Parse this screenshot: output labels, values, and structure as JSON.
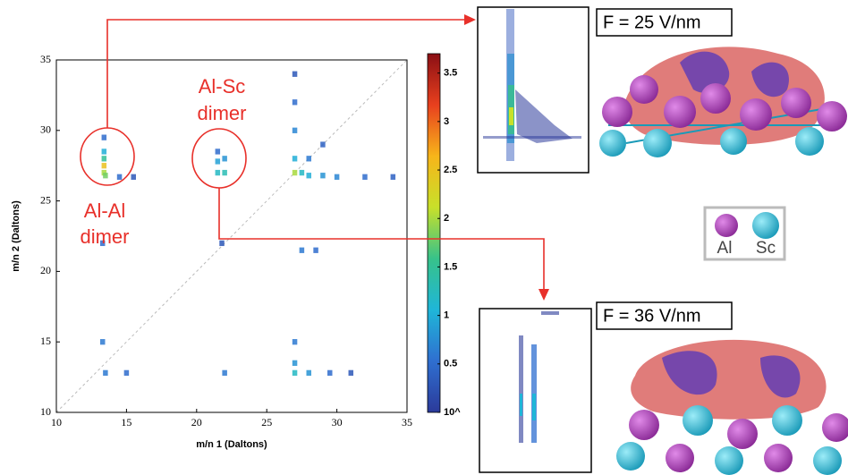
{
  "chart_data": {
    "type": "heatmap",
    "x_label": "m/n 1 (Daltons)",
    "y_label": "m/n 2 (Daltons)",
    "xlim": [
      10,
      35
    ],
    "ylim": [
      10,
      35
    ],
    "xticks": [
      10,
      15,
      20,
      25,
      30,
      35
    ],
    "yticks": [
      10,
      15,
      20,
      25,
      30,
      35
    ],
    "clim": [
      0,
      3.7
    ],
    "cticks": [
      {
        "value": 0,
        "label": "10^"
      },
      0.5,
      1,
      1.5,
      2,
      2.5,
      3,
      3.5
    ],
    "colormap": [
      "#2b3a9a",
      "#2f6fd0",
      "#1fb6d8",
      "#37c28a",
      "#c8e02a",
      "#f7b51a",
      "#e8401e",
      "#8a0f14"
    ],
    "diagonal": true,
    "x": [
      13.4,
      13.4,
      13.4,
      13.4,
      13.4,
      13.5,
      14.5,
      15.5,
      21.5,
      21.5,
      21.5,
      22.0,
      22.0,
      27.0,
      27.5,
      28.0,
      29.0,
      30.0,
      32.0,
      34.0,
      27.0,
      27.0,
      27.0,
      27.0,
      28.0,
      29.0,
      27.5,
      28.5,
      13.5,
      15.0,
      22.0,
      27.0,
      28.0,
      29.5,
      31.0,
      27.0,
      13.3,
      27.0,
      13.3,
      21.8
    ],
    "y": [
      27.0,
      27.5,
      28.0,
      28.5,
      29.5,
      26.8,
      26.7,
      26.7,
      27.0,
      27.8,
      28.5,
      27.0,
      28.0,
      27.0,
      27.0,
      26.8,
      26.8,
      26.7,
      26.7,
      26.7,
      28.0,
      30.0,
      32.0,
      34.0,
      28.0,
      29.0,
      21.5,
      21.5,
      12.8,
      12.8,
      12.8,
      12.8,
      12.8,
      12.8,
      12.8,
      15.0,
      15.0,
      13.5,
      22.0,
      22.0
    ],
    "values": [
      2.0,
      2.5,
      1.5,
      1.0,
      0.5,
      1.8,
      0.5,
      0.3,
      1.2,
      0.9,
      0.5,
      1.3,
      0.8,
      2.0,
      1.2,
      1.0,
      0.8,
      0.7,
      0.5,
      0.4,
      1.0,
      0.7,
      0.5,
      0.3,
      0.6,
      0.4,
      0.6,
      0.5,
      0.6,
      0.5,
      0.6,
      1.2,
      0.8,
      0.5,
      0.3,
      0.6,
      0.6,
      0.8,
      0.5,
      0.3
    ]
  },
  "annotations": {
    "al_al": [
      "Al-Al",
      "dimer"
    ],
    "al_sc": [
      "Al-Sc",
      "dimer"
    ]
  },
  "panels": {
    "field_1": "F = 25 V/nm",
    "field_2": "F = 36 V/nm"
  },
  "legend": {
    "al": "Al",
    "sc": "Sc"
  }
}
